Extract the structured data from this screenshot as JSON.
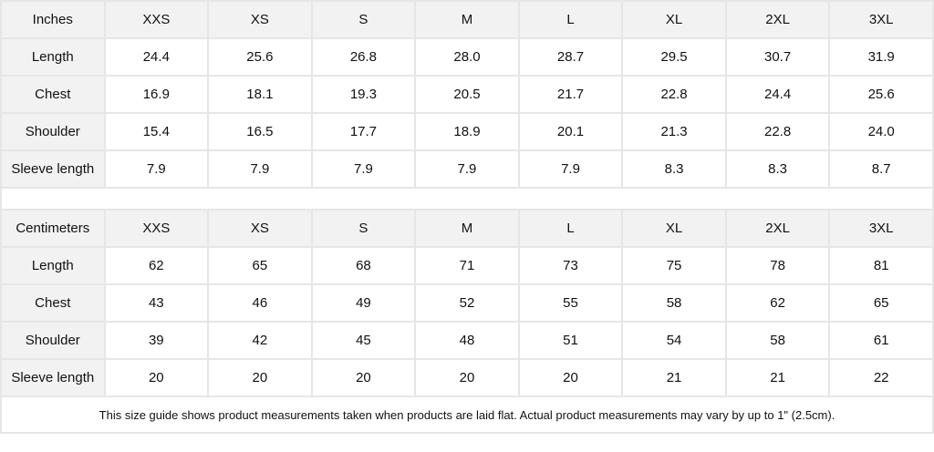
{
  "sizes": [
    "XXS",
    "XS",
    "S",
    "M",
    "L",
    "XL",
    "2XL",
    "3XL"
  ],
  "inches": {
    "unit_label": "Inches",
    "rows": [
      {
        "label": "Length",
        "values": [
          "24.4",
          "25.6",
          "26.8",
          "28.0",
          "28.7",
          "29.5",
          "30.7",
          "31.9"
        ]
      },
      {
        "label": "Chest",
        "values": [
          "16.9",
          "18.1",
          "19.3",
          "20.5",
          "21.7",
          "22.8",
          "24.4",
          "25.6"
        ]
      },
      {
        "label": "Shoulder",
        "values": [
          "15.4",
          "16.5",
          "17.7",
          "18.9",
          "20.1",
          "21.3",
          "22.8",
          "24.0"
        ]
      },
      {
        "label": "Sleeve length",
        "values": [
          "7.9",
          "7.9",
          "7.9",
          "7.9",
          "7.9",
          "8.3",
          "8.3",
          "8.7"
        ]
      }
    ]
  },
  "centimeters": {
    "unit_label": "Centimeters",
    "rows": [
      {
        "label": "Length",
        "values": [
          "62",
          "65",
          "68",
          "71",
          "73",
          "75",
          "78",
          "81"
        ]
      },
      {
        "label": "Chest",
        "values": [
          "43",
          "46",
          "49",
          "52",
          "55",
          "58",
          "62",
          "65"
        ]
      },
      {
        "label": "Shoulder",
        "values": [
          "39",
          "42",
          "45",
          "48",
          "51",
          "54",
          "58",
          "61"
        ]
      },
      {
        "label": "Sleeve length",
        "values": [
          "20",
          "20",
          "20",
          "20",
          "20",
          "21",
          "21",
          "22"
        ]
      }
    ]
  },
  "note": "This size guide shows product measurements taken when products are laid flat.  Actual product measurements may vary by up to 1\" (2.5cm).",
  "colors": {
    "header_bg": "#f2f2f2",
    "border": "#e6e6e6"
  }
}
